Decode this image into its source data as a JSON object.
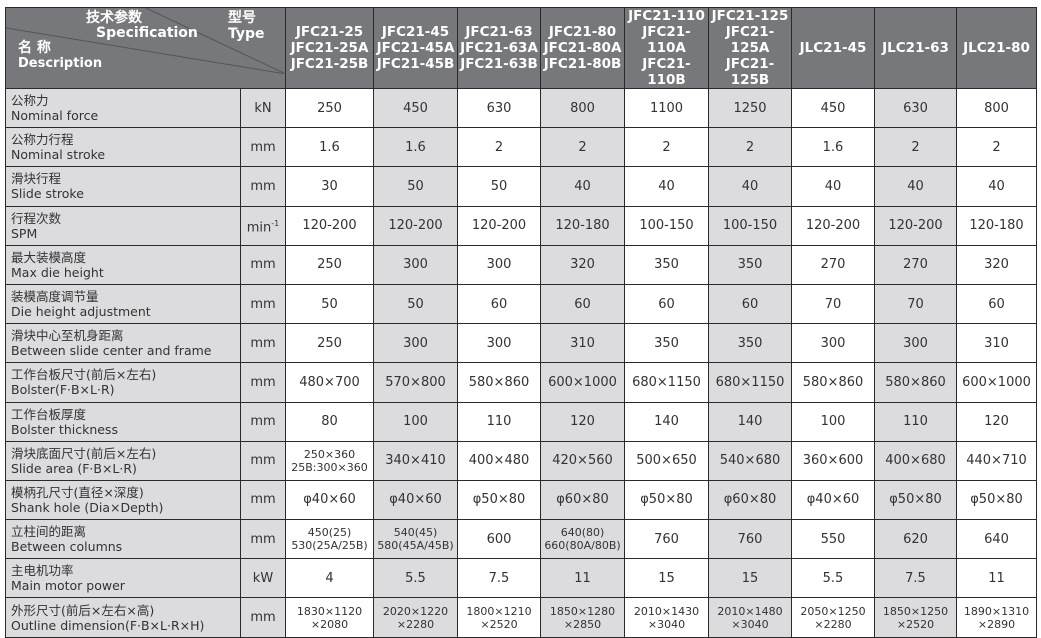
{
  "header": {
    "spec_cn": "技术参数",
    "spec_en": "Specification",
    "type_cn": "型号",
    "type_en": "Type",
    "desc_cn": "名 称",
    "desc_en": "Description",
    "models": [
      [
        "JFC21-25",
        "JFC21-25A",
        "JFC21-25B"
      ],
      [
        "JFC21-45",
        "JFC21-45A",
        "JFC21-45B"
      ],
      [
        "JFC21-63",
        "JFC21-63A",
        "JFC21-63B"
      ],
      [
        "JFC21-80",
        "JFC21-80A",
        "JFC21-80B"
      ],
      [
        "JFC21-110",
        "JFC21-110A",
        "JFC21-110B"
      ],
      [
        "JFC21-125",
        "JFC21-125A",
        "JFC21-125B"
      ],
      [
        "JLC21-45"
      ],
      [
        "JLC21-63"
      ],
      [
        "JLC21-80"
      ]
    ]
  },
  "colors": {
    "header_bg": "#77787b",
    "shade": "#dcdcde",
    "border": "#2a2a2a"
  },
  "rows": [
    {
      "cn": "公称力",
      "en": "Nominal force",
      "unit": "kN",
      "values": [
        "250",
        "450",
        "630",
        "800",
        "1100",
        "1250",
        "450",
        "630",
        "800"
      ]
    },
    {
      "cn": "公称力行程",
      "en": "Nominal stroke",
      "unit": "mm",
      "values": [
        "1.6",
        "1.6",
        "2",
        "2",
        "2",
        "2",
        "1.6",
        "2",
        "2"
      ]
    },
    {
      "cn": "滑块行程",
      "en": "Slide stroke",
      "unit": "mm",
      "values": [
        "30",
        "50",
        "50",
        "40",
        "40",
        "40",
        "40",
        "40",
        "40"
      ]
    },
    {
      "cn": "行程次数",
      "en": "SPM",
      "unit": "min",
      "unit_sup": "-1",
      "values": [
        "120-200",
        "120-200",
        "120-200",
        "120-180",
        "100-150",
        "100-150",
        "120-200",
        "120-200",
        "120-180"
      ]
    },
    {
      "cn": "最大装模高度",
      "en": "Max die height",
      "unit": "mm",
      "values": [
        "250",
        "300",
        "300",
        "320",
        "350",
        "350",
        "270",
        "270",
        "320"
      ]
    },
    {
      "cn": "装模高度调节量",
      "en": "Die height adjustment",
      "unit": "mm",
      "values": [
        "50",
        "50",
        "60",
        "60",
        "60",
        "60",
        "70",
        "70",
        "60"
      ]
    },
    {
      "cn": "滑块中心至机身距离",
      "en": "Between slide center and frame",
      "unit": "mm",
      "values": [
        "250",
        "300",
        "300",
        "310",
        "350",
        "350",
        "300",
        "300",
        "310"
      ]
    },
    {
      "cn": "工作台板尺寸(前后×左右)",
      "en": "Bolster(F·B×L·R)",
      "unit": "mm",
      "values": [
        "480×700",
        "570×800",
        "580×860",
        "600×1000",
        "680×1150",
        "680×1150",
        "580×860",
        "580×860",
        "600×1000"
      ]
    },
    {
      "cn": "工作台板厚度",
      "en": "Bolster thickness",
      "unit": "mm",
      "values": [
        "80",
        "100",
        "110",
        "120",
        "140",
        "140",
        "100",
        "110",
        "120"
      ]
    },
    {
      "cn": "滑块底面尺寸(前后×左右)",
      "en": "Slide area (F·B×L·R)",
      "unit": "mm",
      "values": [
        [
          "250×360",
          "25B:300×360"
        ],
        "340×410",
        "400×480",
        "420×560",
        "500×650",
        "540×680",
        "360×600",
        "400×680",
        "440×710"
      ]
    },
    {
      "cn": "模柄孔尺寸(直径×深度)",
      "en": "Shank hole (Dia×Depth)",
      "unit": "mm",
      "values": [
        "φ40×60",
        "φ40×60",
        "φ50×80",
        "φ60×80",
        "φ50×80",
        "φ60×80",
        "φ40×60",
        "φ50×80",
        "φ50×80"
      ]
    },
    {
      "cn": "立柱间的距离",
      "en": "Between columns",
      "unit": "mm",
      "values": [
        [
          "450(25)",
          "530(25A/25B)"
        ],
        [
          "540(45)",
          "580(45A/45B)"
        ],
        "600",
        [
          "640(80)",
          "660(80A/80B)"
        ],
        "760",
        "760",
        "550",
        "620",
        "640"
      ]
    },
    {
      "cn": "主电机功率",
      "en": "Main motor power",
      "unit": "kW",
      "values": [
        "4",
        "5.5",
        "7.5",
        "11",
        "15",
        "15",
        "5.5",
        "7.5",
        "11"
      ]
    },
    {
      "cn": "外形尺寸(前后×左右×高)",
      "en": "Outline dimension(F·B×L·R×H)",
      "unit": "mm",
      "values": [
        [
          "1830×1120",
          "×2080"
        ],
        [
          "2020×1220",
          "×2280"
        ],
        [
          "1800×1210",
          "×2520"
        ],
        [
          "1850×1280",
          "×2850"
        ],
        [
          "2010×1430",
          "×3040"
        ],
        [
          "2010×1480",
          "×3040"
        ],
        [
          "2050×1250",
          "×2280"
        ],
        [
          "1850×1250",
          "×2520"
        ],
        [
          "1890×1310",
          "×2890"
        ]
      ]
    }
  ]
}
